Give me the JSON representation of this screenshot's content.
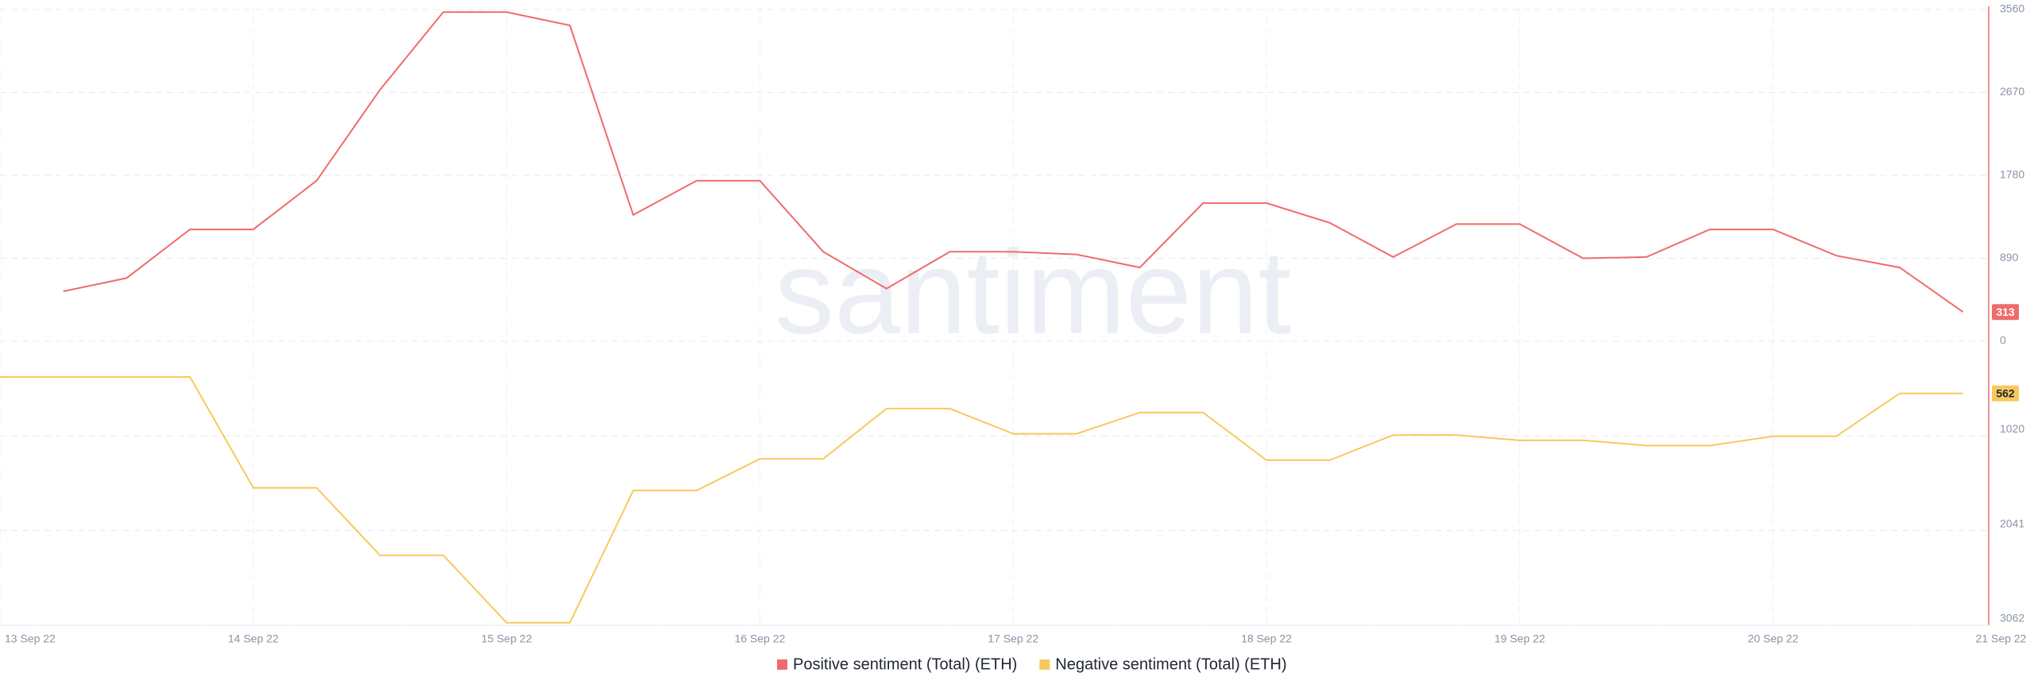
{
  "chart_data": {
    "type": "line",
    "watermark": "santiment",
    "categories": [
      "13 Sep 22",
      null,
      null,
      null,
      "14 Sep 22",
      null,
      null,
      null,
      "15 Sep 22",
      null,
      null,
      null,
      "16 Sep 22",
      null,
      null,
      null,
      "17 Sep 22",
      null,
      null,
      null,
      "18 Sep 22",
      null,
      null,
      null,
      "19 Sep 22",
      null,
      null,
      null,
      "20 Sep 22",
      null,
      null,
      null,
      "21 Sep 22"
    ],
    "series": [
      {
        "name": "Positive sentiment (Total) (ETH)",
        "color": "#ef6b6b",
        "axis": "y",
        "values": [
          null,
          536,
          678,
          1200,
          1200,
          1723,
          2698,
          3532,
          3532,
          3390,
          1356,
          1723,
          1723,
          961,
          565,
          961,
          961,
          932,
          791,
          1483,
          1483,
          1271,
          904,
          1257,
          1257,
          890,
          904,
          1200,
          1200,
          918,
          791,
          313,
          null
        ]
      },
      {
        "name": "Negative sentiment (Total) (ETH)",
        "color": "#f7c95c",
        "axis": "y2",
        "values": [
          385,
          385,
          385,
          385,
          1581,
          1581,
          2307,
          2307,
          3034,
          3034,
          1609,
          1609,
          1268,
          1268,
          726,
          726,
          997,
          997,
          769,
          769,
          1282,
          1282,
          1011,
          1011,
          1068,
          1068,
          1125,
          1125,
          1025,
          1025,
          562,
          562,
          null
        ]
      }
    ],
    "ylim": [
      0,
      3560
    ],
    "yticks": [
      0,
      890,
      1780,
      2670,
      3560
    ],
    "y2lim": [
      0,
      3062
    ],
    "y2ticks": [
      1020,
      2041,
      3062
    ],
    "y2_inverted": true,
    "grid": true,
    "legend": "bottom"
  }
}
